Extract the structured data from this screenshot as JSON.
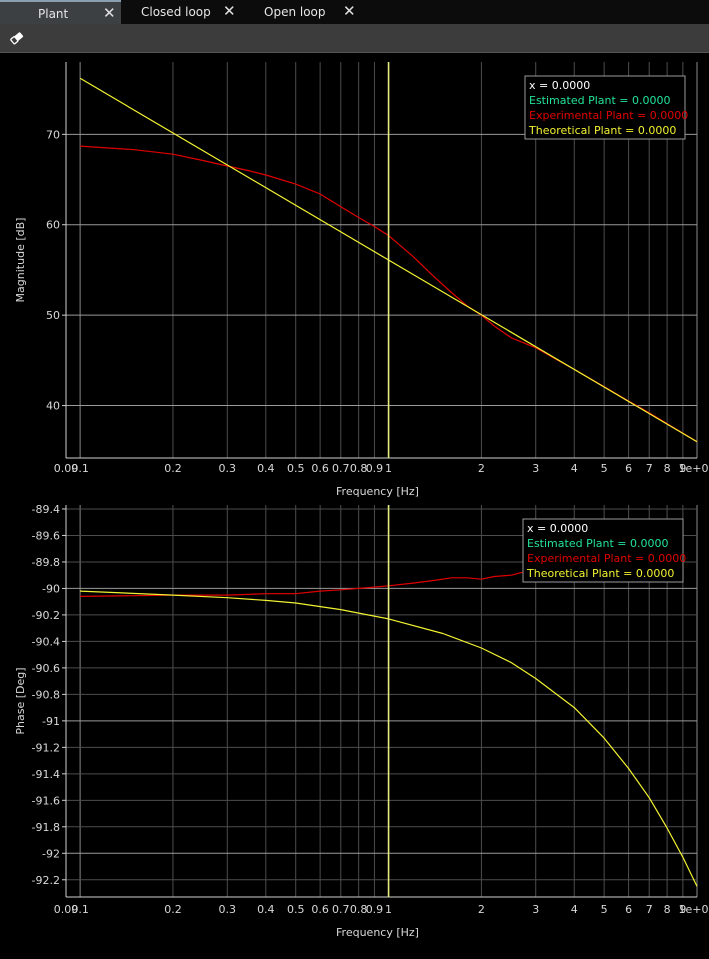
{
  "tabs": [
    {
      "label": "Plant",
      "active": true
    },
    {
      "label": "Closed loop",
      "active": false
    },
    {
      "label": "Open loop",
      "active": false
    }
  ],
  "tab_close_glyph": "✕",
  "toolbar": {
    "eraser_icon": "eraser-icon"
  },
  "colors": {
    "estimated": "#22e39a",
    "experimental": "#e00000",
    "theoretical": "#f2f232",
    "grid": "#4d4d4d",
    "cursor": "#e6ec7a"
  },
  "chart_data": [
    {
      "type": "line",
      "xlabel": "Frequency [Hz]",
      "ylabel": "Magnitude [dB]",
      "xscale": "log",
      "xlim": [
        0.09,
        10
      ],
      "ylim": [
        34.2,
        78
      ],
      "x_ticks": [
        "0.09",
        "0.1",
        "0.2",
        "0.3",
        "0.4",
        "0.5",
        "0.6",
        "0.7",
        "0.8",
        "0.9",
        "1",
        "2",
        "3",
        "4",
        "5",
        "6",
        "7",
        "8",
        "9",
        "1e+01"
      ],
      "y_ticks": [
        "40",
        "50",
        "60",
        "70"
      ],
      "cursor_x": 1,
      "legend": {
        "position": "top-right",
        "entries": [
          {
            "text": "x = 0.0000",
            "color": "#ffffff"
          },
          {
            "text": "Estimated Plant = 0.0000",
            "color": "#22e39a"
          },
          {
            "text": "Experimental Plant = 0.0000",
            "color": "#e00000"
          },
          {
            "text": "Theoretical Plant = 0.0000",
            "color": "#f2f232"
          }
        ]
      },
      "series": [
        {
          "name": "Experimental Plant",
          "color": "#e00000",
          "x": [
            0.1,
            0.15,
            0.2,
            0.25,
            0.3,
            0.35,
            0.4,
            0.5,
            0.6,
            0.7,
            0.8,
            0.9,
            1.0,
            1.2,
            1.4,
            1.6,
            1.8,
            2.0,
            2.2,
            2.5,
            3.0,
            3.5,
            4,
            5,
            6,
            7,
            8,
            10
          ],
          "y": [
            68.7,
            68.3,
            67.8,
            67.1,
            66.5,
            66.0,
            65.5,
            64.5,
            63.4,
            62.0,
            60.8,
            59.8,
            58.8,
            56.5,
            54.3,
            52.5,
            51.0,
            50.0,
            48.8,
            47.5,
            46.4,
            45.1,
            44.0,
            42.1,
            40.5,
            39.2,
            38.0,
            36.0
          ]
        },
        {
          "name": "Theoretical Plant",
          "color": "#f2f232",
          "x": [
            0.1,
            10
          ],
          "y": [
            76.2,
            36.0
          ]
        }
      ]
    },
    {
      "type": "line",
      "xlabel": "Frequency [Hz]",
      "ylabel": "Phase [Deg]",
      "xscale": "log",
      "xlim": [
        0.09,
        10
      ],
      "ylim": [
        -92.33,
        -89.37
      ],
      "x_ticks": [
        "0.09",
        "0.1",
        "0.2",
        "0.3",
        "0.4",
        "0.5",
        "0.6",
        "0.7",
        "0.8",
        "0.9",
        "1",
        "2",
        "3",
        "4",
        "5",
        "6",
        "7",
        "8",
        "9",
        "1e+01"
      ],
      "y_ticks": [
        "-89.4",
        "-89.6",
        "-89.8",
        "-90",
        "-90.2",
        "-90.4",
        "-90.6",
        "-90.8",
        "-91",
        "-91.2",
        "-91.4",
        "-91.6",
        "-91.8",
        "-92",
        "-92.2"
      ],
      "cursor_x": 1,
      "legend": {
        "position": "top-right",
        "entries": [
          {
            "text": "x = 0.0000",
            "color": "#ffffff"
          },
          {
            "text": "Estimated Plant = 0.0000",
            "color": "#22e39a"
          },
          {
            "text": "Experimental Plant = 0.0000",
            "color": "#e00000"
          },
          {
            "text": "Theoretical Plant = 0.0000",
            "color": "#f2f232"
          }
        ]
      },
      "series": [
        {
          "name": "Experimental Plant",
          "color": "#e00000",
          "x": [
            0.1,
            0.15,
            0.2,
            0.3,
            0.4,
            0.5,
            0.6,
            0.7,
            0.8,
            0.9,
            1.0,
            1.2,
            1.4,
            1.6,
            1.8,
            2.0,
            2.2,
            2.5,
            2.8,
            3.0
          ],
          "y": [
            -90.06,
            -90.055,
            -90.05,
            -90.05,
            -90.04,
            -90.04,
            -90.02,
            -90.01,
            -90.0,
            -89.99,
            -89.98,
            -89.96,
            -89.94,
            -89.92,
            -89.92,
            -89.93,
            -89.91,
            -89.9,
            -89.87,
            -89.82
          ]
        },
        {
          "name": "Theoretical Plant",
          "color": "#f2f232",
          "x": [
            0.1,
            0.2,
            0.3,
            0.4,
            0.5,
            0.7,
            1.0,
            1.5,
            2.0,
            2.5,
            3.0,
            4.0,
            5.0,
            6.0,
            7.0,
            8.0,
            9.0,
            10.0
          ],
          "y": [
            -90.02,
            -90.05,
            -90.07,
            -90.09,
            -90.11,
            -90.16,
            -90.23,
            -90.34,
            -90.45,
            -90.56,
            -90.68,
            -90.9,
            -91.13,
            -91.36,
            -91.58,
            -91.81,
            -92.03,
            -92.25
          ]
        }
      ]
    }
  ]
}
